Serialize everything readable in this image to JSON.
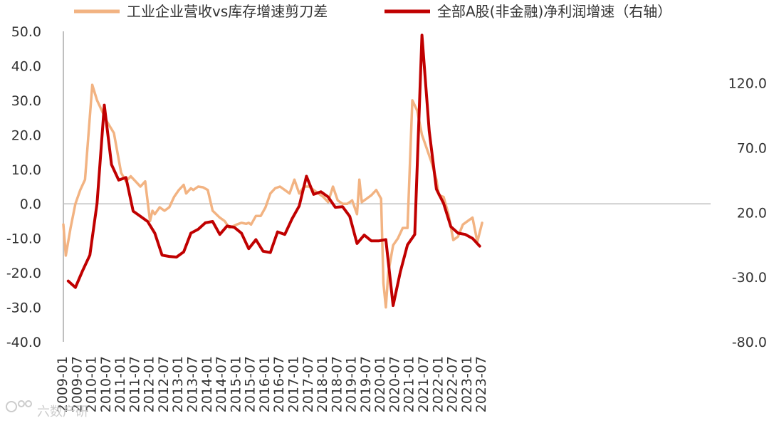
{
  "chart_data": {
    "type": "line",
    "legend_position": "top",
    "grid": false,
    "left_axis": {
      "ylim": [
        -40,
        50
      ],
      "ticks": [
        "50.0",
        "40.0",
        "30.0",
        "20.0",
        "10.0",
        "0.0",
        "-10.0",
        "-20.0",
        "-30.0",
        "-40.0"
      ]
    },
    "right_axis": {
      "ylim": [
        -80,
        160
      ],
      "ticks": [
        "120.0",
        "70.0",
        "20.0",
        "-30.0",
        "-80.0"
      ]
    },
    "x_ticks": [
      "2009-01",
      "2009-07",
      "2010-01",
      "2010-07",
      "2011-01",
      "2011-07",
      "2012-01",
      "2012-07",
      "2013-01",
      "2013-07",
      "2014-01",
      "2014-07",
      "2015-01",
      "2015-07",
      "2016-01",
      "2016-07",
      "2017-01",
      "2017-07",
      "2018-01",
      "2018-07",
      "2019-01",
      "2019-07",
      "2020-01",
      "2020-07",
      "2021-01",
      "2021-07",
      "2022-01",
      "2022-07",
      "2023-01",
      "2023-07"
    ],
    "series": [
      {
        "name": "工业企业营收vs库存增速剪刀差",
        "axis": "left",
        "color": "#F2B382",
        "points": [
          [
            "2009-01",
            -6
          ],
          [
            "2009-02",
            -15
          ],
          [
            "2009-04",
            -7
          ],
          [
            "2009-06",
            0
          ],
          [
            "2009-08",
            4
          ],
          [
            "2009-10",
            7
          ],
          [
            "2010-01",
            34.5
          ],
          [
            "2010-03",
            30
          ],
          [
            "2010-05",
            27
          ],
          [
            "2010-07",
            24
          ],
          [
            "2010-10",
            20.5
          ],
          [
            "2011-01",
            9
          ],
          [
            "2011-03",
            6.5
          ],
          [
            "2011-05",
            8
          ],
          [
            "2011-07",
            6.5
          ],
          [
            "2011-09",
            5
          ],
          [
            "2011-11",
            6.5
          ],
          [
            "2012-01",
            -5
          ],
          [
            "2012-02",
            -2
          ],
          [
            "2012-03",
            -3
          ],
          [
            "2012-05",
            -1
          ],
          [
            "2012-07",
            -2
          ],
          [
            "2012-09",
            -1
          ],
          [
            "2012-11",
            2
          ],
          [
            "2013-01",
            4
          ],
          [
            "2013-03",
            5.5
          ],
          [
            "2013-04",
            3
          ],
          [
            "2013-06",
            4.5
          ],
          [
            "2013-07",
            4
          ],
          [
            "2013-09",
            5
          ],
          [
            "2013-11",
            4.8
          ],
          [
            "2014-01",
            4
          ],
          [
            "2014-03",
            -2
          ],
          [
            "2014-06",
            -4
          ],
          [
            "2014-08",
            -5
          ],
          [
            "2014-10",
            -7
          ],
          [
            "2015-01",
            -6
          ],
          [
            "2015-03",
            -5.5
          ],
          [
            "2015-05",
            -5.8
          ],
          [
            "2015-06",
            -5.5
          ],
          [
            "2015-07",
            -6
          ],
          [
            "2015-09",
            -3.5
          ],
          [
            "2015-11",
            -3.5
          ],
          [
            "2016-01",
            -1
          ],
          [
            "2016-03",
            3
          ],
          [
            "2016-05",
            4.5
          ],
          [
            "2016-07",
            5
          ],
          [
            "2016-09",
            4
          ],
          [
            "2016-11",
            3
          ],
          [
            "2017-01",
            7
          ],
          [
            "2017-03",
            3
          ],
          [
            "2017-05",
            5
          ],
          [
            "2017-07",
            5
          ],
          [
            "2017-09",
            4
          ],
          [
            "2017-11",
            3
          ],
          [
            "2018-01",
            2
          ],
          [
            "2018-03",
            0.5
          ],
          [
            "2018-05",
            5
          ],
          [
            "2018-07",
            1
          ],
          [
            "2018-09",
            0
          ],
          [
            "2018-11",
            0
          ],
          [
            "2019-01",
            1
          ],
          [
            "2019-03",
            -3
          ],
          [
            "2019-04",
            7
          ],
          [
            "2019-05",
            0.5
          ],
          [
            "2019-07",
            1.5
          ],
          [
            "2019-09",
            2.5
          ],
          [
            "2019-11",
            4
          ],
          [
            "2020-01",
            1.5
          ],
          [
            "2020-02",
            -23
          ],
          [
            "2020-03",
            -30
          ],
          [
            "2020-04",
            -20
          ],
          [
            "2020-06",
            -12
          ],
          [
            "2020-08",
            -10
          ],
          [
            "2020-10",
            -7
          ],
          [
            "2020-12",
            -7
          ],
          [
            "2021-02",
            30
          ],
          [
            "2021-04",
            27
          ],
          [
            "2021-06",
            20
          ],
          [
            "2021-08",
            16
          ],
          [
            "2021-10",
            12
          ],
          [
            "2021-12",
            7
          ],
          [
            "2022-01",
            2.5
          ],
          [
            "2022-03",
            2
          ],
          [
            "2022-05",
            -3
          ],
          [
            "2022-07",
            -10.5
          ],
          [
            "2022-09",
            -9.5
          ],
          [
            "2022-11",
            -6
          ],
          [
            "2023-01",
            -5
          ],
          [
            "2023-03",
            -4
          ],
          [
            "2023-05",
            -11
          ],
          [
            "2023-07",
            -5.5
          ]
        ]
      },
      {
        "name": "全部A股(非金融)净利润增速（右轴）",
        "axis": "right",
        "color": "#C00000",
        "points": [
          [
            "2009-03",
            -33
          ],
          [
            "2009-06",
            -38
          ],
          [
            "2009-09",
            -25
          ],
          [
            "2009-12",
            -13
          ],
          [
            "2010-03",
            27
          ],
          [
            "2010-06",
            103
          ],
          [
            "2010-09",
            57
          ],
          [
            "2010-12",
            45
          ],
          [
            "2011-03",
            47
          ],
          [
            "2011-06",
            21
          ],
          [
            "2011-09",
            17
          ],
          [
            "2011-12",
            13
          ],
          [
            "2012-03",
            4
          ],
          [
            "2012-06",
            -13
          ],
          [
            "2012-09",
            -14
          ],
          [
            "2012-12",
            -14.5
          ],
          [
            "2013-03",
            -10.5
          ],
          [
            "2013-06",
            4
          ],
          [
            "2013-09",
            7
          ],
          [
            "2013-12",
            12
          ],
          [
            "2014-03",
            13
          ],
          [
            "2014-06",
            3
          ],
          [
            "2014-09",
            9.5
          ],
          [
            "2014-12",
            8.5
          ],
          [
            "2015-03",
            4
          ],
          [
            "2015-06",
            -8
          ],
          [
            "2015-09",
            -1
          ],
          [
            "2015-12",
            -10
          ],
          [
            "2016-03",
            -11
          ],
          [
            "2016-06",
            5
          ],
          [
            "2016-09",
            3
          ],
          [
            "2016-12",
            15
          ],
          [
            "2017-03",
            25
          ],
          [
            "2017-06",
            48
          ],
          [
            "2017-09",
            34
          ],
          [
            "2017-12",
            36
          ],
          [
            "2018-03",
            32
          ],
          [
            "2018-06",
            24
          ],
          [
            "2018-09",
            24.5
          ],
          [
            "2018-12",
            17
          ],
          [
            "2019-03",
            -4
          ],
          [
            "2019-06",
            2.5
          ],
          [
            "2019-09",
            -2
          ],
          [
            "2019-12",
            -2
          ],
          [
            "2020-03",
            -1
          ],
          [
            "2020-06",
            -52
          ],
          [
            "2020-09",
            -26
          ],
          [
            "2020-12",
            -5
          ],
          [
            "2021-03",
            3
          ],
          [
            "2021-06",
            157
          ],
          [
            "2021-09",
            83
          ],
          [
            "2021-12",
            38
          ],
          [
            "2022-03",
            27
          ],
          [
            "2022-06",
            9
          ],
          [
            "2022-09",
            4
          ],
          [
            "2022-12",
            3
          ],
          [
            "2023-03",
            0
          ],
          [
            "2023-06",
            -6
          ]
        ]
      }
    ]
  },
  "watermark": {
    "text": "六数产研"
  }
}
